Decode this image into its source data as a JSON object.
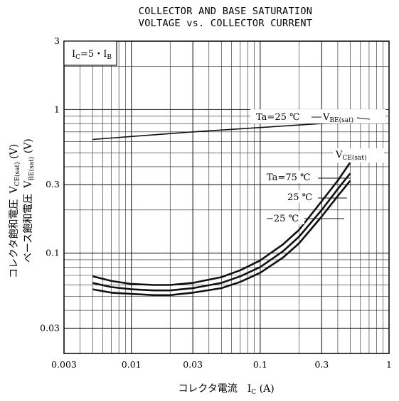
{
  "chart_data": {
    "type": "line",
    "title_line1": "COLLECTOR AND BASE SATURATION",
    "title_line2": "VOLTAGE vs. COLLECTOR CURRENT",
    "xlabel": "コレクタ電流　I",
    "xlabel_sub": "C",
    "xlabel_unit": " (A)",
    "ylabel_line1": {
      "jp": "コレクタ飽和電圧",
      "sym": "V",
      "sub": "CE(sat)",
      "unit": " (V)"
    },
    "ylabel_line2": {
      "jp": "ベース飽和電圧",
      "sym": "V",
      "sub": "BE(sat)",
      "unit": " (V)"
    },
    "condition": {
      "pre": "I",
      "sub1": "C",
      "mid": "=5・I",
      "sub2": "B"
    },
    "x_scale": "log",
    "y_scale": "log",
    "xlim": [
      0.003,
      1
    ],
    "ylim": [
      0.02,
      3
    ],
    "x_ticks": [
      0.003,
      0.01,
      0.03,
      0.1,
      0.3,
      1
    ],
    "x_tick_labels": [
      "0.003",
      "0.01",
      "0.03",
      "0.1",
      "0.3",
      "1"
    ],
    "y_ticks": [
      0.03,
      0.1,
      0.3,
      1,
      3
    ],
    "y_tick_labels": [
      "0.03",
      "0.1",
      "0.3",
      "1",
      "3"
    ],
    "grid": true,
    "series": [
      {
        "name": "VBE(sat) Ta=25°C",
        "x": [
          0.005,
          0.01,
          0.03,
          0.1,
          0.3,
          0.5
        ],
        "y": [
          0.62,
          0.65,
          0.7,
          0.75,
          0.8,
          0.82
        ]
      },
      {
        "name": "VCE(sat) Ta=75°C",
        "x": [
          0.005,
          0.007,
          0.01,
          0.015,
          0.02,
          0.03,
          0.05,
          0.07,
          0.1,
          0.15,
          0.2,
          0.3,
          0.4,
          0.5
        ],
        "y": [
          0.069,
          0.064,
          0.061,
          0.06,
          0.06,
          0.062,
          0.068,
          0.076,
          0.089,
          0.115,
          0.145,
          0.23,
          0.32,
          0.43
        ]
      },
      {
        "name": "VCE(sat) Ta=25°C",
        "x": [
          0.005,
          0.007,
          0.01,
          0.015,
          0.02,
          0.03,
          0.05,
          0.07,
          0.1,
          0.15,
          0.2,
          0.3,
          0.4,
          0.5
        ],
        "y": [
          0.062,
          0.058,
          0.056,
          0.055,
          0.055,
          0.057,
          0.062,
          0.069,
          0.08,
          0.103,
          0.13,
          0.2,
          0.28,
          0.36
        ]
      },
      {
        "name": "VCE(sat) Ta=-25°C",
        "x": [
          0.005,
          0.007,
          0.01,
          0.015,
          0.02,
          0.03,
          0.05,
          0.07,
          0.1,
          0.15,
          0.2,
          0.3,
          0.4,
          0.5
        ],
        "y": [
          0.056,
          0.053,
          0.052,
          0.051,
          0.051,
          0.053,
          0.057,
          0.063,
          0.073,
          0.093,
          0.117,
          0.18,
          0.25,
          0.32
        ]
      }
    ],
    "annotations": {
      "vbe_ta": "Ta",
      "vbe_temp": "=25 ℃",
      "vbe_sym": "V",
      "vbe_sub": "BE(sat)",
      "vce_sym": "V",
      "vce_sub": "CE(sat)",
      "ta75_pre": "Ta",
      "ta75_temp": "=75 ℃",
      "t25": "25 ℃",
      "tm25": "−25 ℃"
    }
  }
}
